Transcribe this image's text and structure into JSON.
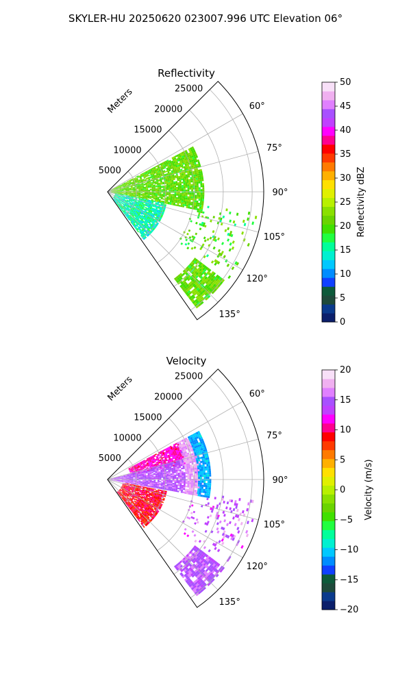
{
  "suptitle": "SKYLER-HU  20250620  023007.996 UTC Elevation 06°",
  "chart_data": [
    {
      "type": "polar-sector",
      "title": "Reflectivity",
      "range_label": "Meters",
      "range_ticks": [
        "5000",
        "10000",
        "15000",
        "20000",
        "25000"
      ],
      "range_max": 27000,
      "theta_range_deg": [
        45,
        145
      ],
      "angle_ticks": [
        "60°",
        "75°",
        "90°",
        "105°",
        "120°",
        "135°"
      ],
      "grid": true,
      "colorbar": {
        "label": "Reflectivity dBZ",
        "min": 0,
        "max": 50,
        "ticks": [
          "0",
          "5",
          "10",
          "15",
          "20",
          "25",
          "30",
          "35",
          "40",
          "45",
          "50"
        ]
      },
      "palette": [
        "#0b1f6b",
        "#0a3a8c",
        "#1e4a3a",
        "#0d5a3a",
        "#1040ff",
        "#008cff",
        "#00c8ff",
        "#00f0d0",
        "#00ff9a",
        "#20ff40",
        "#40e000",
        "#6ad400",
        "#8ae000",
        "#b8f000",
        "#e0f000",
        "#ffe000",
        "#ffb000",
        "#ff7a00",
        "#ff3a00",
        "#ff0000",
        "#ff0090",
        "#ff00ff",
        "#c040ff",
        "#a850ff",
        "#e080ff",
        "#f0b0f0",
        "#f8e0f8"
      ],
      "regions": [
        {
          "name": "main-echo",
          "r_min": 0.02,
          "r_max": 0.62,
          "t_min": 62,
          "t_max": 101,
          "dbz_mean": 21,
          "dbz_spread": 3
        },
        {
          "name": "near-field-southeast",
          "r_min": 0.05,
          "r_max": 0.38,
          "t_min": 101,
          "t_max": 142,
          "dbz_mean": 15,
          "dbz_spread": 3
        },
        {
          "name": "distant-band-southeast",
          "r_min": 0.7,
          "r_max": 0.93,
          "t_min": 127,
          "t_max": 142,
          "dbz_mean": 21,
          "dbz_spread": 3
        },
        {
          "name": "east-scatter",
          "r_min": 0.55,
          "r_max": 0.97,
          "t_min": 98,
          "t_max": 125,
          "dbz_mean": 20,
          "dbz_spread": 4
        }
      ]
    },
    {
      "type": "polar-sector",
      "title": "Velocity",
      "range_label": "Meters",
      "range_ticks": [
        "5000",
        "10000",
        "15000",
        "20000",
        "25000"
      ],
      "range_max": 27000,
      "theta_range_deg": [
        45,
        145
      ],
      "angle_ticks": [
        "60°",
        "75°",
        "90°",
        "105°",
        "120°",
        "135°"
      ],
      "grid": true,
      "colorbar": {
        "label": "Velocity (m/s)",
        "min": -20,
        "max": 20,
        "ticks": [
          "−20",
          "−15",
          "−10",
          "−5",
          "0",
          "5",
          "10",
          "15",
          "20"
        ]
      },
      "palette": [
        "#0b1f6b",
        "#0a3a8c",
        "#1e4a3a",
        "#0d5a3a",
        "#1040ff",
        "#008cff",
        "#00c8ff",
        "#00f0d0",
        "#00ff9a",
        "#20ff40",
        "#40e000",
        "#6ad400",
        "#8ae000",
        "#b8f000",
        "#e0f000",
        "#ffe000",
        "#ffb000",
        "#ff7a00",
        "#ff3a00",
        "#ff0000",
        "#ff0090",
        "#ff00ff",
        "#c040ff",
        "#a850ff",
        "#e080ff",
        "#f0b0f0",
        "#f8e0f8"
      ],
      "regions": [
        {
          "name": "red-north-band",
          "r_min": 0.15,
          "r_max": 0.5,
          "t_min": 62,
          "t_max": 78,
          "vel_mean": 11,
          "vel_spread": 1.5
        },
        {
          "name": "magenta-core",
          "r_min": 0.02,
          "r_max": 0.5,
          "t_min": 75,
          "t_max": 100,
          "vel_mean": 15,
          "vel_spread": 1.5
        },
        {
          "name": "lavender-edge",
          "r_min": 0.5,
          "r_max": 0.6,
          "t_min": 62,
          "t_max": 100,
          "vel_mean": 17,
          "vel_spread": 1.5
        },
        {
          "name": "cyan-fringe",
          "r_min": 0.58,
          "r_max": 0.66,
          "t_min": 62,
          "t_max": 100,
          "vel_mean": -11,
          "vel_spread": 1.5
        },
        {
          "name": "red-southeast",
          "r_min": 0.1,
          "r_max": 0.38,
          "t_min": 101,
          "t_max": 142,
          "vel_mean": 9,
          "vel_spread": 2
        },
        {
          "name": "magenta-distant",
          "r_min": 0.7,
          "r_max": 0.93,
          "t_min": 127,
          "t_max": 142,
          "vel_mean": 15,
          "vel_spread": 1.5
        },
        {
          "name": "east-scatter",
          "r_min": 0.55,
          "r_max": 0.97,
          "t_min": 98,
          "t_max": 125,
          "vel_mean": 15,
          "vel_spread": 3
        }
      ]
    }
  ]
}
